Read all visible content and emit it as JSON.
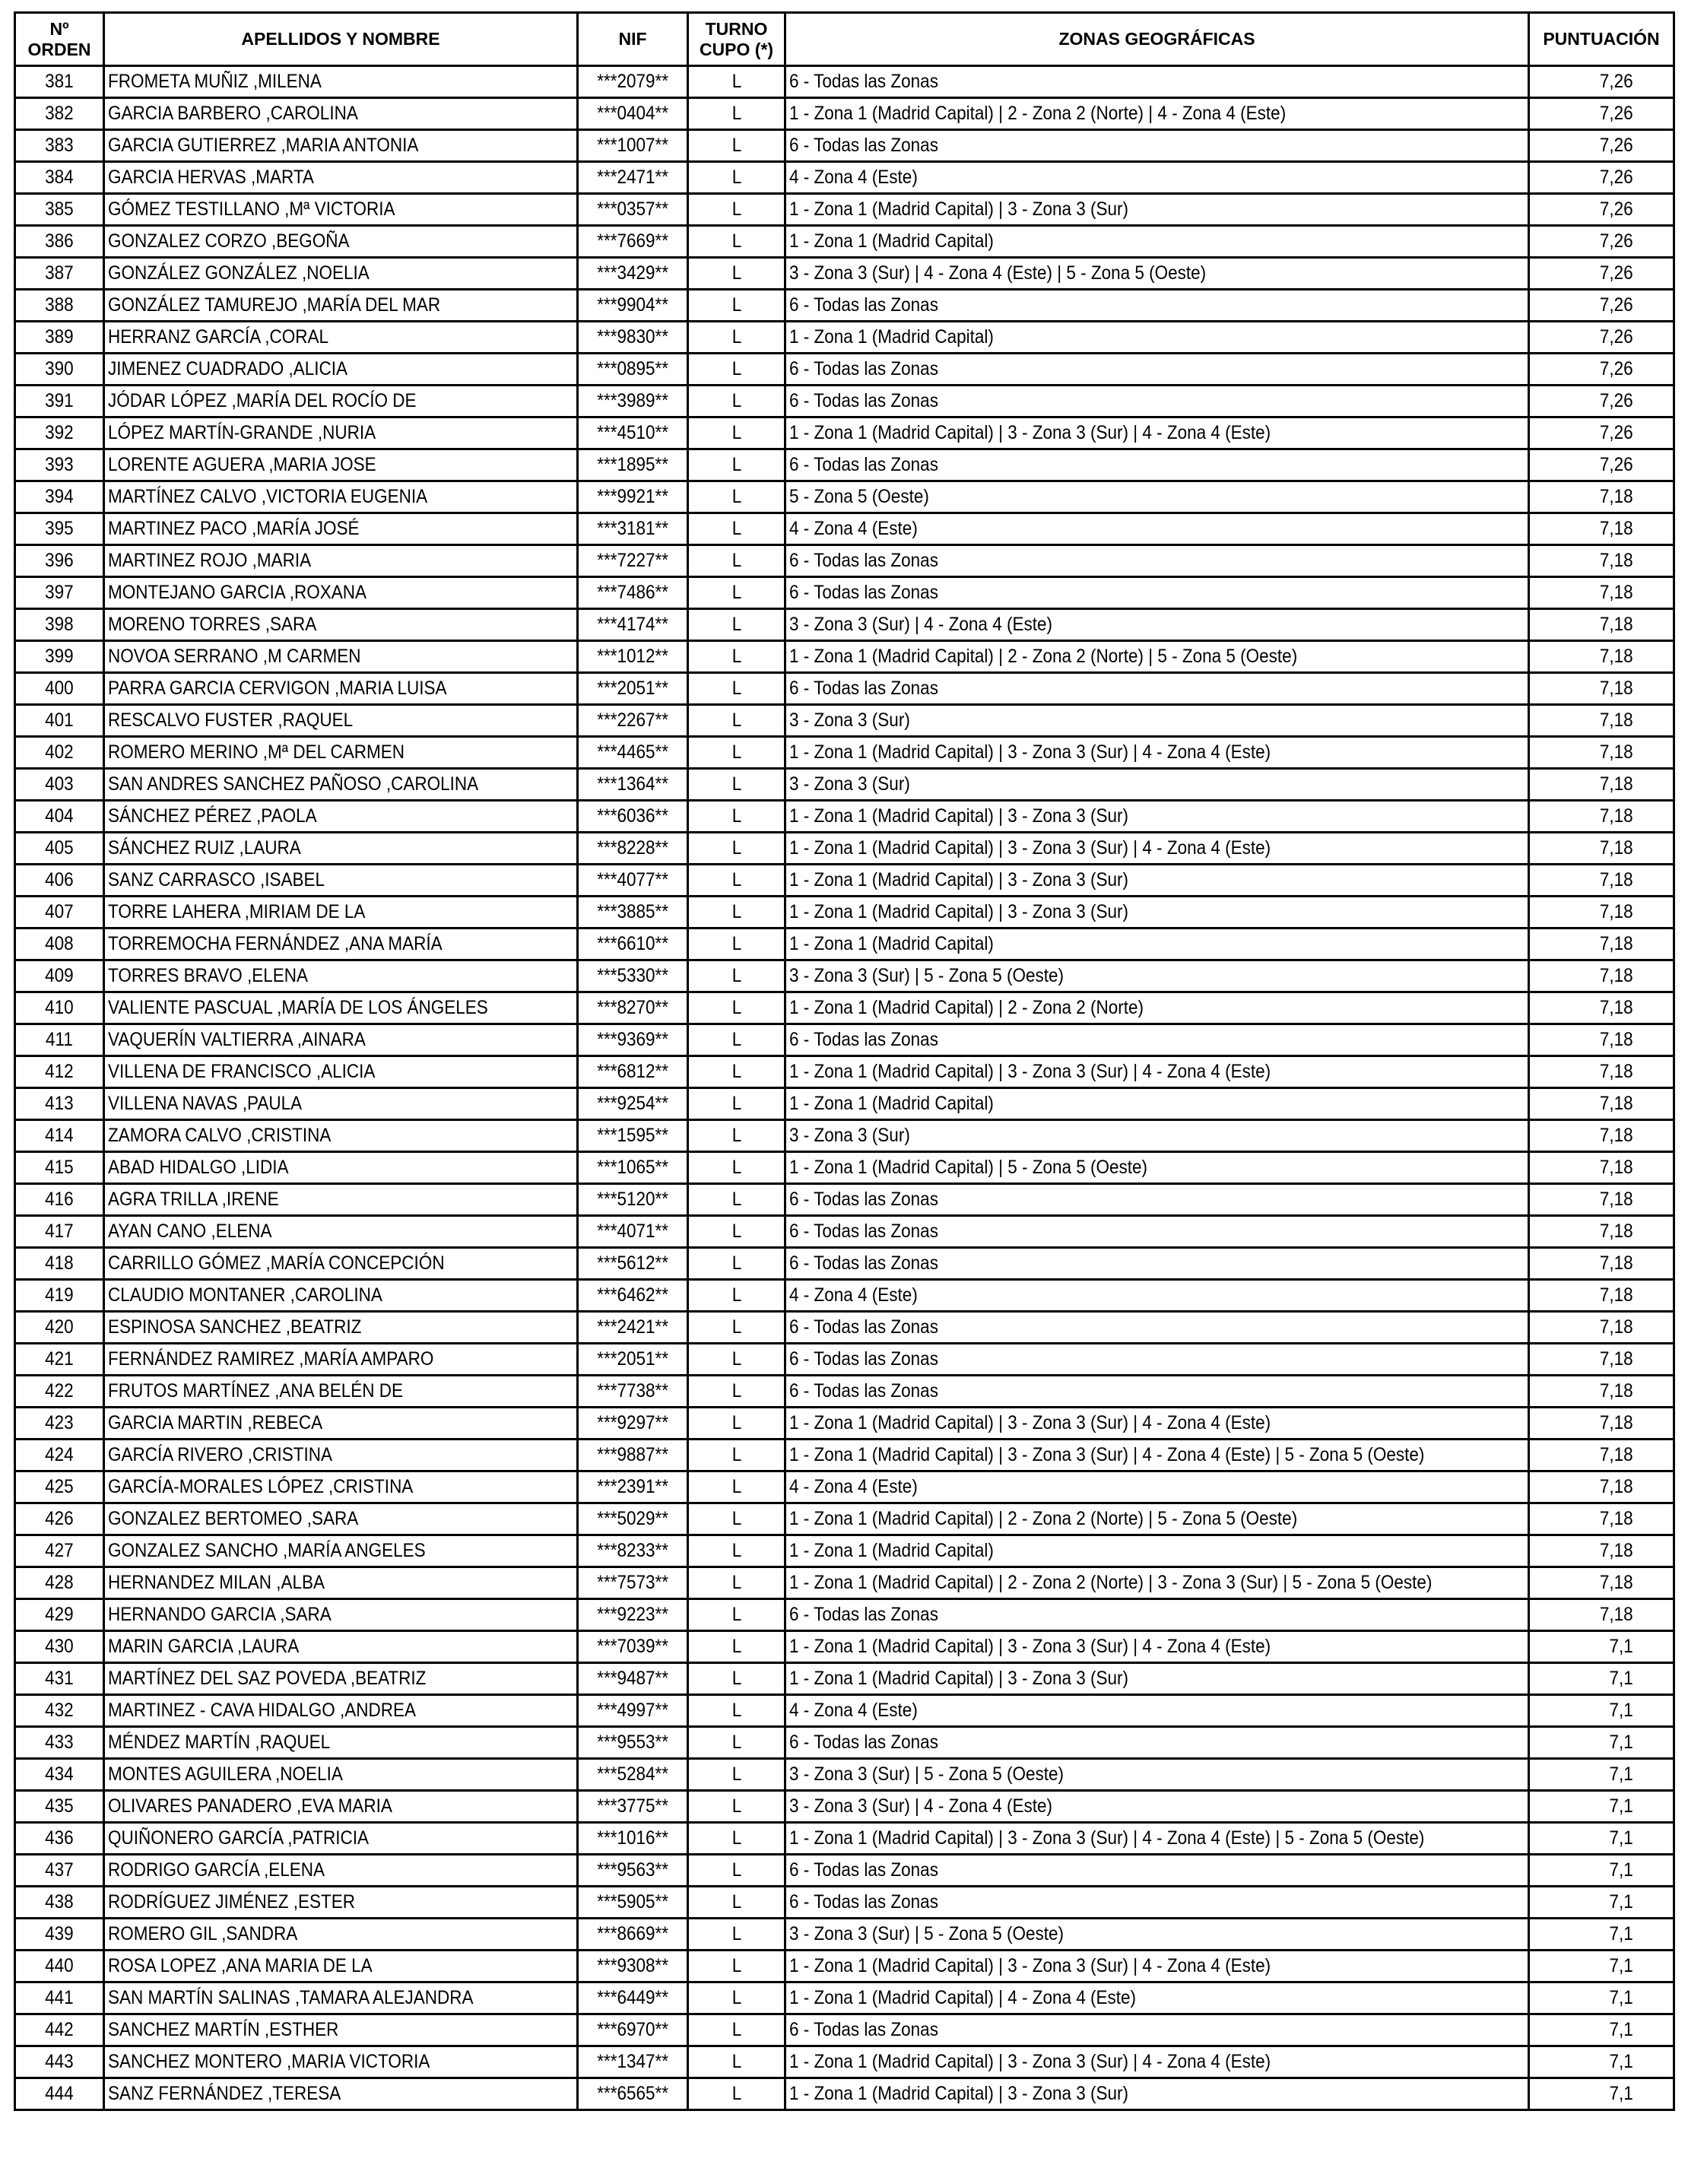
{
  "table": {
    "headers": {
      "orden_line1": "Nº",
      "orden_line2": "ORDEN",
      "nombre": "APELLIDOS Y NOMBRE",
      "nif": "NIF",
      "turno_line1": "TURNO",
      "turno_line2": "CUPO (*)",
      "zonas": "ZONAS GEOGRÁFICAS",
      "puntuacion": "PUNTUACIÓN"
    },
    "rows": [
      {
        "orden": "381",
        "nombre": "FROMETA MUÑIZ ,MILENA",
        "nif": "***2079**",
        "turno": "L",
        "zonas": "6 - Todas las Zonas",
        "puntuacion": "7,26"
      },
      {
        "orden": "382",
        "nombre": "GARCIA BARBERO ,CAROLINA",
        "nif": "***0404**",
        "turno": "L",
        "zonas": "1 - Zona 1 (Madrid Capital) | 2 - Zona 2 (Norte) | 4 - Zona 4 (Este)",
        "puntuacion": "7,26"
      },
      {
        "orden": "383",
        "nombre": "GARCIA GUTIERREZ ,MARIA ANTONIA",
        "nif": "***1007**",
        "turno": "L",
        "zonas": "6 - Todas las Zonas",
        "puntuacion": "7,26"
      },
      {
        "orden": "384",
        "nombre": "GARCIA HERVAS ,MARTA",
        "nif": "***2471**",
        "turno": "L",
        "zonas": "4 - Zona 4 (Este)",
        "puntuacion": "7,26"
      },
      {
        "orden": "385",
        "nombre": "GÓMEZ TESTILLANO ,Mª VICTORIA",
        "nif": "***0357**",
        "turno": "L",
        "zonas": "1 - Zona 1 (Madrid Capital) | 3 - Zona 3 (Sur)",
        "puntuacion": "7,26"
      },
      {
        "orden": "386",
        "nombre": "GONZALEZ CORZO ,BEGOÑA",
        "nif": "***7669**",
        "turno": "L",
        "zonas": "1 - Zona 1 (Madrid Capital)",
        "puntuacion": "7,26"
      },
      {
        "orden": "387",
        "nombre": "GONZÁLEZ GONZÁLEZ ,NOELIA",
        "nif": "***3429**",
        "turno": "L",
        "zonas": "3 - Zona 3 (Sur) | 4 - Zona 4 (Este) | 5 - Zona 5 (Oeste)",
        "puntuacion": "7,26"
      },
      {
        "orden": "388",
        "nombre": "GONZÁLEZ TAMUREJO ,MARÍA DEL MAR",
        "nif": "***9904**",
        "turno": "L",
        "zonas": "6 - Todas las Zonas",
        "puntuacion": "7,26"
      },
      {
        "orden": "389",
        "nombre": "HERRANZ GARCÍA ,CORAL",
        "nif": "***9830**",
        "turno": "L",
        "zonas": "1 - Zona 1 (Madrid Capital)",
        "puntuacion": "7,26"
      },
      {
        "orden": "390",
        "nombre": "JIMENEZ CUADRADO ,ALICIA",
        "nif": "***0895**",
        "turno": "L",
        "zonas": "6 - Todas las Zonas",
        "puntuacion": "7,26"
      },
      {
        "orden": "391",
        "nombre": "JÓDAR LÓPEZ ,MARÍA DEL ROCÍO DE",
        "nif": "***3989**",
        "turno": "L",
        "zonas": "6 - Todas las Zonas",
        "puntuacion": "7,26"
      },
      {
        "orden": "392",
        "nombre": "LÓPEZ MARTÍN-GRANDE ,NURIA",
        "nif": "***4510**",
        "turno": "L",
        "zonas": "1 - Zona 1 (Madrid Capital) | 3 - Zona 3 (Sur) | 4 - Zona 4 (Este)",
        "puntuacion": "7,26"
      },
      {
        "orden": "393",
        "nombre": "LORENTE AGUERA ,MARIA JOSE",
        "nif": "***1895**",
        "turno": "L",
        "zonas": "6 - Todas las Zonas",
        "puntuacion": "7,26"
      },
      {
        "orden": "394",
        "nombre": "MARTÍNEZ CALVO ,VICTORIA EUGENIA",
        "nif": "***9921**",
        "turno": "L",
        "zonas": "5 - Zona 5 (Oeste)",
        "puntuacion": "7,18"
      },
      {
        "orden": "395",
        "nombre": "MARTINEZ PACO ,MARÍA JOSÉ",
        "nif": "***3181**",
        "turno": "L",
        "zonas": "4 - Zona 4 (Este)",
        "puntuacion": "7,18"
      },
      {
        "orden": "396",
        "nombre": "MARTINEZ ROJO ,MARIA",
        "nif": "***7227**",
        "turno": "L",
        "zonas": "6 - Todas las Zonas",
        "puntuacion": "7,18"
      },
      {
        "orden": "397",
        "nombre": "MONTEJANO GARCIA ,ROXANA",
        "nif": "***7486**",
        "turno": "L",
        "zonas": "6 - Todas las Zonas",
        "puntuacion": "7,18"
      },
      {
        "orden": "398",
        "nombre": "MORENO TORRES ,SARA",
        "nif": "***4174**",
        "turno": "L",
        "zonas": "3 - Zona 3 (Sur) | 4 - Zona 4 (Este)",
        "puntuacion": "7,18"
      },
      {
        "orden": "399",
        "nombre": "NOVOA SERRANO ,M CARMEN",
        "nif": "***1012**",
        "turno": "L",
        "zonas": "1 - Zona 1 (Madrid Capital) | 2 - Zona 2 (Norte) | 5 - Zona 5 (Oeste)",
        "puntuacion": "7,18"
      },
      {
        "orden": "400",
        "nombre": "PARRA GARCIA CERVIGON ,MARIA LUISA",
        "nif": "***2051**",
        "turno": "L",
        "zonas": "6 - Todas las Zonas",
        "puntuacion": "7,18"
      },
      {
        "orden": "401",
        "nombre": "RESCALVO FUSTER ,RAQUEL",
        "nif": "***2267**",
        "turno": "L",
        "zonas": "3 - Zona 3 (Sur)",
        "puntuacion": "7,18"
      },
      {
        "orden": "402",
        "nombre": "ROMERO MERINO ,Mª DEL CARMEN",
        "nif": "***4465**",
        "turno": "L",
        "zonas": "1 - Zona 1 (Madrid Capital) | 3 - Zona 3 (Sur) | 4 - Zona 4 (Este)",
        "puntuacion": "7,18"
      },
      {
        "orden": "403",
        "nombre": "SAN ANDRES SANCHEZ PAÑOSO ,CAROLINA",
        "nif": "***1364**",
        "turno": "L",
        "zonas": "3 - Zona 3 (Sur)",
        "puntuacion": "7,18"
      },
      {
        "orden": "404",
        "nombre": "SÁNCHEZ PÉREZ ,PAOLA",
        "nif": "***6036**",
        "turno": "L",
        "zonas": "1 - Zona 1 (Madrid Capital) | 3 - Zona 3 (Sur)",
        "puntuacion": "7,18"
      },
      {
        "orden": "405",
        "nombre": "SÁNCHEZ RUIZ ,LAURA",
        "nif": "***8228**",
        "turno": "L",
        "zonas": "1 - Zona 1 (Madrid Capital) | 3 - Zona 3 (Sur) | 4 - Zona 4 (Este)",
        "puntuacion": "7,18"
      },
      {
        "orden": "406",
        "nombre": "SANZ CARRASCO ,ISABEL",
        "nif": "***4077**",
        "turno": "L",
        "zonas": "1 - Zona 1 (Madrid Capital) | 3 - Zona 3 (Sur)",
        "puntuacion": "7,18"
      },
      {
        "orden": "407",
        "nombre": "TORRE LAHERA ,MIRIAM DE LA",
        "nif": "***3885**",
        "turno": "L",
        "zonas": "1 - Zona 1 (Madrid Capital) | 3 - Zona 3 (Sur)",
        "puntuacion": "7,18"
      },
      {
        "orden": "408",
        "nombre": "TORREMOCHA FERNÁNDEZ ,ANA MARÍA",
        "nif": "***6610**",
        "turno": "L",
        "zonas": "1 - Zona 1 (Madrid Capital)",
        "puntuacion": "7,18"
      },
      {
        "orden": "409",
        "nombre": "TORRES BRAVO ,ELENA",
        "nif": "***5330**",
        "turno": "L",
        "zonas": "3 - Zona 3 (Sur) | 5 - Zona 5 (Oeste)",
        "puntuacion": "7,18"
      },
      {
        "orden": "410",
        "nombre": "VALIENTE PASCUAL ,MARÍA DE LOS ÁNGELES",
        "nif": "***8270**",
        "turno": "L",
        "zonas": "1 - Zona 1 (Madrid Capital) | 2 - Zona 2 (Norte)",
        "puntuacion": "7,18"
      },
      {
        "orden": "411",
        "nombre": "VAQUERÍN VALTIERRA ,AINARA",
        "nif": "***9369**",
        "turno": "L",
        "zonas": "6 - Todas las Zonas",
        "puntuacion": "7,18"
      },
      {
        "orden": "412",
        "nombre": "VILLENA DE FRANCISCO ,ALICIA",
        "nif": "***6812**",
        "turno": "L",
        "zonas": "1 - Zona 1 (Madrid Capital) | 3 - Zona 3 (Sur) | 4 - Zona 4 (Este)",
        "puntuacion": "7,18"
      },
      {
        "orden": "413",
        "nombre": "VILLENA NAVAS ,PAULA",
        "nif": "***9254**",
        "turno": "L",
        "zonas": "1 - Zona 1 (Madrid Capital)",
        "puntuacion": "7,18"
      },
      {
        "orden": "414",
        "nombre": "ZAMORA CALVO ,CRISTINA",
        "nif": "***1595**",
        "turno": "L",
        "zonas": "3 - Zona 3 (Sur)",
        "puntuacion": "7,18"
      },
      {
        "orden": "415",
        "nombre": "ABAD HIDALGO ,LIDIA",
        "nif": "***1065**",
        "turno": "L",
        "zonas": "1 - Zona 1 (Madrid Capital) | 5 - Zona 5 (Oeste)",
        "puntuacion": "7,18"
      },
      {
        "orden": "416",
        "nombre": "AGRA TRILLA ,IRENE",
        "nif": "***5120**",
        "turno": "L",
        "zonas": "6 - Todas las Zonas",
        "puntuacion": "7,18"
      },
      {
        "orden": "417",
        "nombre": "AYAN CANO ,ELENA",
        "nif": "***4071**",
        "turno": "L",
        "zonas": "6 - Todas las Zonas",
        "puntuacion": "7,18"
      },
      {
        "orden": "418",
        "nombre": "CARRILLO GÓMEZ ,MARÍA CONCEPCIÓN",
        "nif": "***5612**",
        "turno": "L",
        "zonas": "6 - Todas las Zonas",
        "puntuacion": "7,18"
      },
      {
        "orden": "419",
        "nombre": "CLAUDIO MONTANER ,CAROLINA",
        "nif": "***6462**",
        "turno": "L",
        "zonas": "4 - Zona 4 (Este)",
        "puntuacion": "7,18"
      },
      {
        "orden": "420",
        "nombre": "ESPINOSA SANCHEZ ,BEATRIZ",
        "nif": "***2421**",
        "turno": "L",
        "zonas": "6 - Todas las Zonas",
        "puntuacion": "7,18"
      },
      {
        "orden": "421",
        "nombre": "FERNÁNDEZ RAMIREZ ,MARÍA AMPARO",
        "nif": "***2051**",
        "turno": "L",
        "zonas": "6 - Todas las Zonas",
        "puntuacion": "7,18"
      },
      {
        "orden": "422",
        "nombre": "FRUTOS MARTÍNEZ ,ANA BELÉN DE",
        "nif": "***7738**",
        "turno": "L",
        "zonas": "6 - Todas las Zonas",
        "puntuacion": "7,18"
      },
      {
        "orden": "423",
        "nombre": "GARCIA MARTIN ,REBECA",
        "nif": "***9297**",
        "turno": "L",
        "zonas": "1 - Zona 1 (Madrid Capital) | 3 - Zona 3 (Sur) | 4 - Zona 4 (Este)",
        "puntuacion": "7,18"
      },
      {
        "orden": "424",
        "nombre": "GARCÍA RIVERO ,CRISTINA",
        "nif": "***9887**",
        "turno": "L",
        "zonas": "1 - Zona 1 (Madrid Capital) | 3 - Zona 3 (Sur) | 4 - Zona 4 (Este) | 5 - Zona 5 (Oeste)",
        "puntuacion": "7,18"
      },
      {
        "orden": "425",
        "nombre": "GARCÍA-MORALES LÓPEZ ,CRISTINA",
        "nif": "***2391**",
        "turno": "L",
        "zonas": "4 - Zona 4 (Este)",
        "puntuacion": "7,18"
      },
      {
        "orden": "426",
        "nombre": "GONZALEZ BERTOMEO ,SARA",
        "nif": "***5029**",
        "turno": "L",
        "zonas": "1 - Zona 1 (Madrid Capital) | 2 - Zona 2 (Norte) | 5 - Zona 5 (Oeste)",
        "puntuacion": "7,18"
      },
      {
        "orden": "427",
        "nombre": "GONZALEZ SANCHO ,MARÍA ANGELES",
        "nif": "***8233**",
        "turno": "L",
        "zonas": "1 - Zona 1 (Madrid Capital)",
        "puntuacion": "7,18"
      },
      {
        "orden": "428",
        "nombre": "HERNANDEZ MILAN ,ALBA",
        "nif": "***7573**",
        "turno": "L",
        "zonas": "1 - Zona 1 (Madrid Capital) | 2 - Zona 2 (Norte) | 3 - Zona 3 (Sur) | 5 - Zona 5 (Oeste)",
        "puntuacion": "7,18"
      },
      {
        "orden": "429",
        "nombre": "HERNANDO GARCIA ,SARA",
        "nif": "***9223**",
        "turno": "L",
        "zonas": "6 - Todas las Zonas",
        "puntuacion": "7,18"
      },
      {
        "orden": "430",
        "nombre": "MARIN GARCIA ,LAURA",
        "nif": "***7039**",
        "turno": "L",
        "zonas": "1 - Zona 1 (Madrid Capital) | 3 - Zona 3 (Sur) | 4 - Zona 4 (Este)",
        "puntuacion": "7,1"
      },
      {
        "orden": "431",
        "nombre": "MARTÍNEZ DEL SAZ POVEDA ,BEATRIZ",
        "nif": "***9487**",
        "turno": "L",
        "zonas": "1 - Zona 1 (Madrid Capital) | 3 - Zona 3 (Sur)",
        "puntuacion": "7,1"
      },
      {
        "orden": "432",
        "nombre": "MARTINEZ - CAVA HIDALGO ,ANDREA",
        "nif": "***4997**",
        "turno": "L",
        "zonas": "4 - Zona 4 (Este)",
        "puntuacion": "7,1"
      },
      {
        "orden": "433",
        "nombre": "MÉNDEZ MARTÍN ,RAQUEL",
        "nif": "***9553**",
        "turno": "L",
        "zonas": "6 - Todas las Zonas",
        "puntuacion": "7,1"
      },
      {
        "orden": "434",
        "nombre": "MONTES AGUILERA ,NOELIA",
        "nif": "***5284**",
        "turno": "L",
        "zonas": "3 - Zona 3 (Sur) | 5 - Zona 5 (Oeste)",
        "puntuacion": "7,1"
      },
      {
        "orden": "435",
        "nombre": "OLIVARES PANADERO ,EVA MARIA",
        "nif": "***3775**",
        "turno": "L",
        "zonas": "3 - Zona 3 (Sur) | 4 - Zona 4 (Este)",
        "puntuacion": "7,1"
      },
      {
        "orden": "436",
        "nombre": "QUIÑONERO GARCÍA ,PATRICIA",
        "nif": "***1016**",
        "turno": "L",
        "zonas": "1 - Zona 1 (Madrid Capital) | 3 - Zona 3 (Sur) | 4 - Zona 4 (Este) | 5 - Zona 5 (Oeste)",
        "puntuacion": "7,1"
      },
      {
        "orden": "437",
        "nombre": "RODRIGO GARCÍA ,ELENA",
        "nif": "***9563**",
        "turno": "L",
        "zonas": "6 - Todas las Zonas",
        "puntuacion": "7,1"
      },
      {
        "orden": "438",
        "nombre": "RODRÍGUEZ JIMÉNEZ ,ESTER",
        "nif": "***5905**",
        "turno": "L",
        "zonas": "6 - Todas las Zonas",
        "puntuacion": "7,1"
      },
      {
        "orden": "439",
        "nombre": "ROMERO GIL ,SANDRA",
        "nif": "***8669**",
        "turno": "L",
        "zonas": "3 - Zona 3 (Sur) | 5 - Zona 5 (Oeste)",
        "puntuacion": "7,1"
      },
      {
        "orden": "440",
        "nombre": "ROSA LOPEZ ,ANA MARIA DE LA",
        "nif": "***9308**",
        "turno": "L",
        "zonas": "1 - Zona 1 (Madrid Capital) | 3 - Zona 3 (Sur) | 4 - Zona 4 (Este)",
        "puntuacion": "7,1"
      },
      {
        "orden": "441",
        "nombre": "SAN MARTÍN SALINAS ,TAMARA ALEJANDRA",
        "nif": "***6449**",
        "turno": "L",
        "zonas": "1 - Zona 1 (Madrid Capital) | 4 - Zona 4 (Este)",
        "puntuacion": "7,1"
      },
      {
        "orden": "442",
        "nombre": "SANCHEZ MARTÍN ,ESTHER",
        "nif": "***6970**",
        "turno": "L",
        "zonas": "6 - Todas las Zonas",
        "puntuacion": "7,1"
      },
      {
        "orden": "443",
        "nombre": "SANCHEZ MONTERO ,MARIA VICTORIA",
        "nif": "***1347**",
        "turno": "L",
        "zonas": "1 - Zona 1 (Madrid Capital) | 3 - Zona 3 (Sur) | 4 - Zona 4 (Este)",
        "puntuacion": "7,1"
      },
      {
        "orden": "444",
        "nombre": "SANZ FERNÁNDEZ ,TERESA",
        "nif": "***6565**",
        "turno": "L",
        "zonas": "1 - Zona 1 (Madrid Capital) | 3 - Zona 3 (Sur)",
        "puntuacion": "7,1"
      }
    ]
  }
}
